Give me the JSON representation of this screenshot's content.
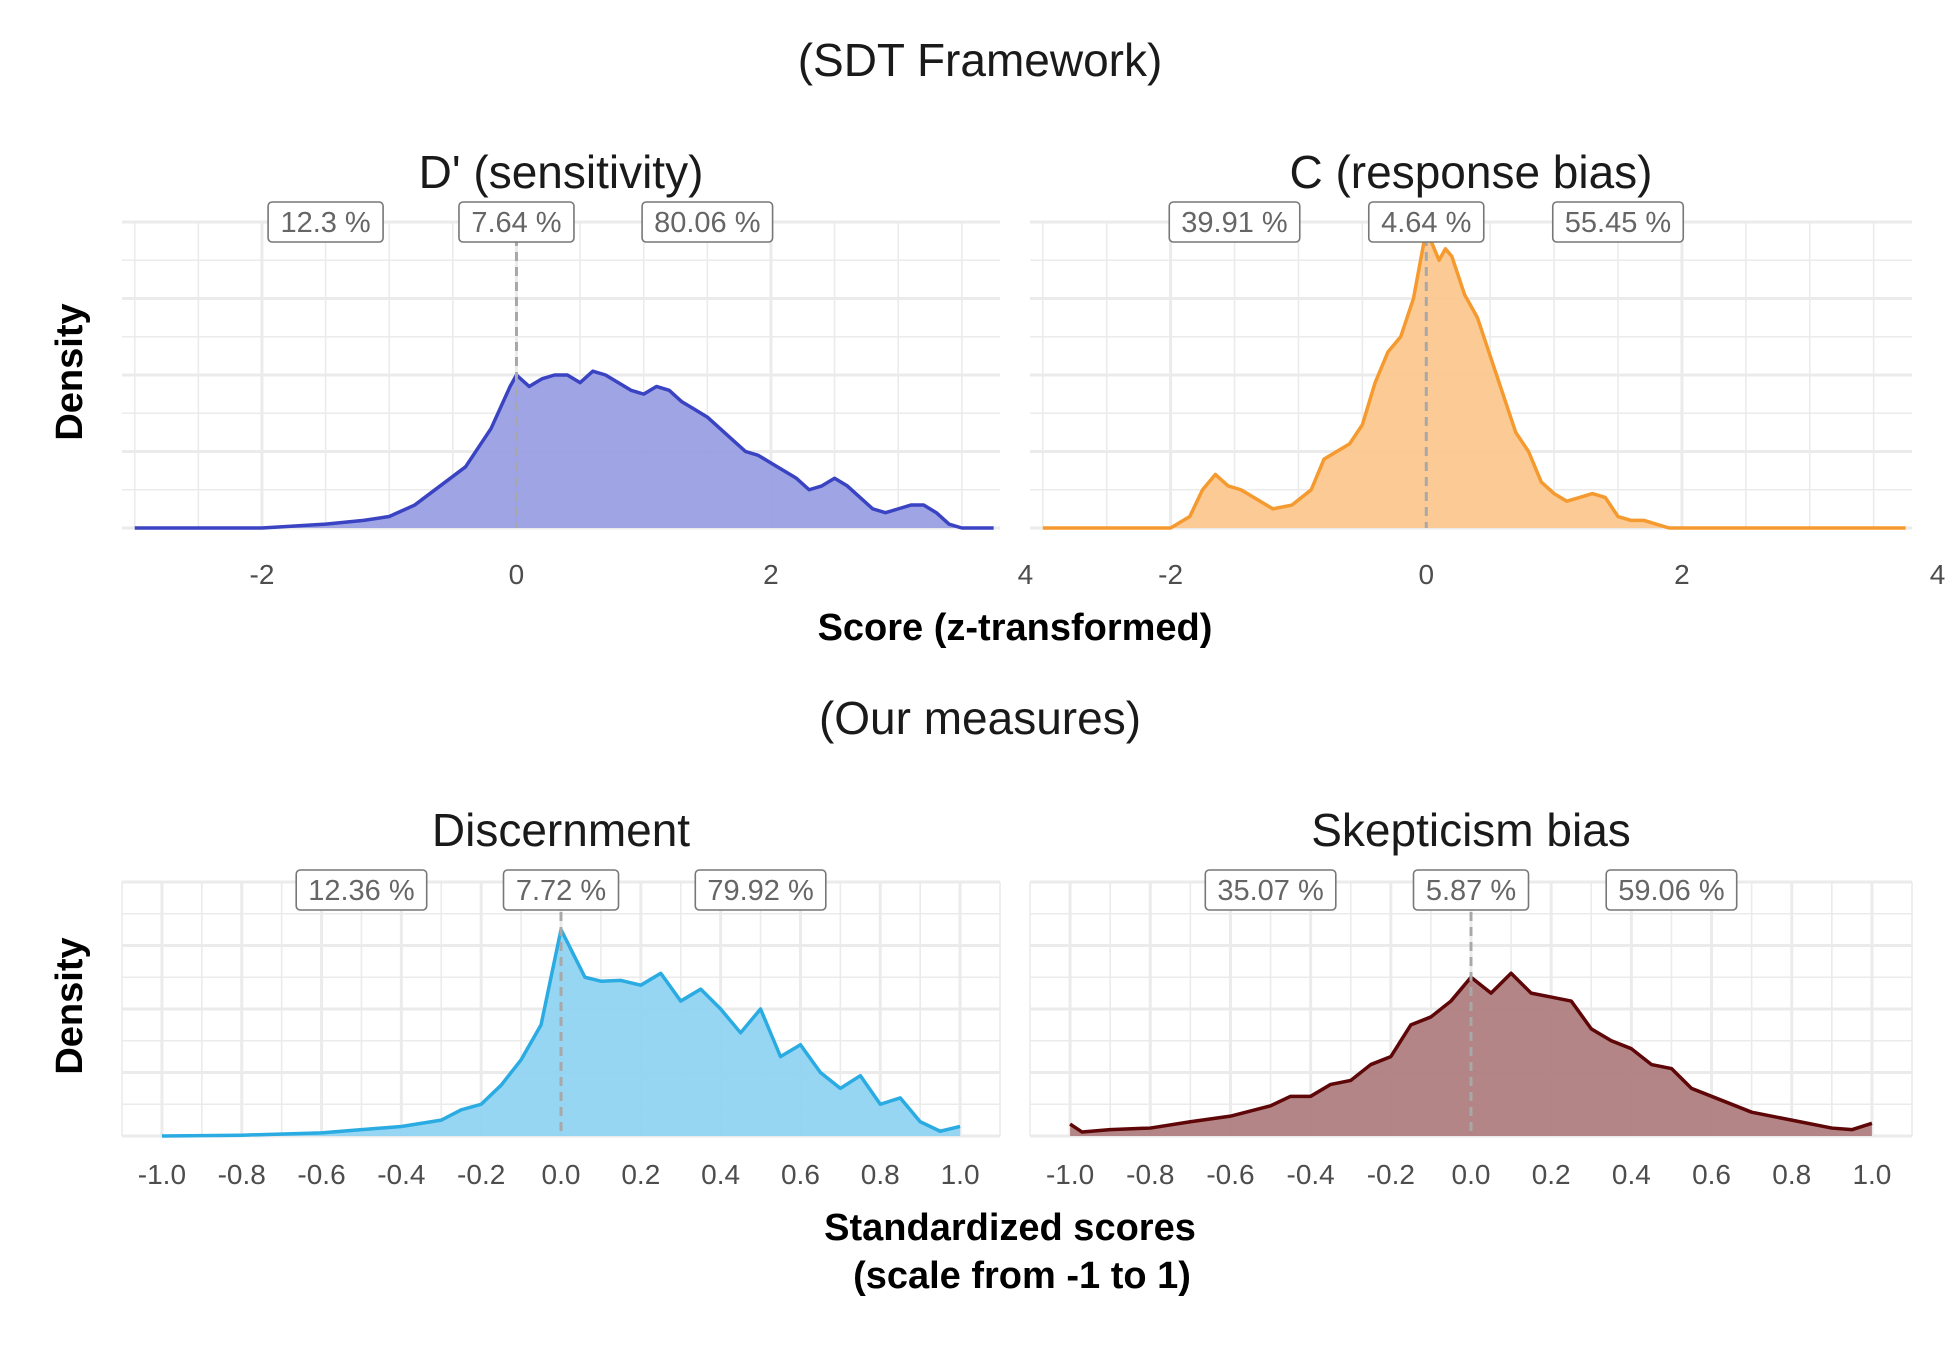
{
  "sections": [
    {
      "title": "(SDT Framework)",
      "x_axis_title": "Score (z-transformed)"
    },
    {
      "title": "(Our measures)",
      "x_axis_title_lines": [
        "Standardized scores",
        "(scale from -1 to 1)"
      ]
    }
  ],
  "y_axis_title": "Density",
  "chart_data": [
    {
      "type": "area",
      "title": "D' (sensitivity)",
      "xlabel": "Score (z-transformed)",
      "ylabel": "Density",
      "xlim": [
        -3.1,
        3.8
      ],
      "xticks": [
        -2,
        0,
        2,
        4
      ],
      "tick_labels": [
        "-2",
        "0",
        "2",
        "4"
      ],
      "ylim": [
        0,
        0.8
      ],
      "grid": true,
      "fill_color": "#9aa0e3",
      "line_color": "#3a43c2",
      "reference_x": 0,
      "region_labels": [
        "12.3 %",
        "7.64 %",
        "80.06 %"
      ],
      "region_label_x": [
        -1.5,
        0,
        1.5
      ],
      "x": [
        -3.0,
        -2.0,
        -1.5,
        -1.2,
        -1.0,
        -0.8,
        -0.6,
        -0.4,
        -0.2,
        -0.05,
        0.0,
        0.1,
        0.2,
        0.3,
        0.4,
        0.5,
        0.6,
        0.7,
        0.8,
        0.9,
        1.0,
        1.1,
        1.2,
        1.3,
        1.4,
        1.5,
        1.6,
        1.7,
        1.8,
        1.9,
        2.0,
        2.1,
        2.2,
        2.3,
        2.4,
        2.5,
        2.6,
        2.7,
        2.8,
        2.9,
        3.0,
        3.1,
        3.2,
        3.3,
        3.4,
        3.5,
        3.75
      ],
      "y": [
        0.0,
        0.0,
        0.01,
        0.02,
        0.03,
        0.06,
        0.11,
        0.16,
        0.26,
        0.37,
        0.4,
        0.37,
        0.39,
        0.4,
        0.4,
        0.38,
        0.41,
        0.4,
        0.38,
        0.36,
        0.35,
        0.37,
        0.36,
        0.33,
        0.31,
        0.29,
        0.26,
        0.23,
        0.2,
        0.19,
        0.17,
        0.15,
        0.13,
        0.1,
        0.11,
        0.13,
        0.11,
        0.08,
        0.05,
        0.04,
        0.05,
        0.06,
        0.06,
        0.04,
        0.01,
        0.0,
        0.0
      ]
    },
    {
      "type": "area",
      "title": "C (response bias)",
      "xlabel": "Score (z-transformed)",
      "ylabel": "Density",
      "xlim": [
        -3.1,
        3.8
      ],
      "xticks": [
        -2,
        0,
        2,
        4
      ],
      "tick_labels": [
        "-2",
        "0",
        "2",
        "4"
      ],
      "ylim": [
        0,
        0.8
      ],
      "grid": true,
      "fill_color": "#fcc78f",
      "line_color": "#f59a2f",
      "reference_x": 0,
      "region_labels": [
        "39.91 %",
        "4.64 %",
        "55.45 %"
      ],
      "region_label_x": [
        -1.5,
        0,
        1.5
      ],
      "x": [
        -3.0,
        -2.0,
        -1.85,
        -1.75,
        -1.65,
        -1.55,
        -1.45,
        -1.35,
        -1.2,
        -1.05,
        -0.9,
        -0.8,
        -0.7,
        -0.6,
        -0.5,
        -0.4,
        -0.3,
        -0.2,
        -0.1,
        0.0,
        0.05,
        0.1,
        0.15,
        0.2,
        0.3,
        0.4,
        0.5,
        0.6,
        0.7,
        0.8,
        0.9,
        1.0,
        1.1,
        1.2,
        1.3,
        1.4,
        1.5,
        1.6,
        1.7,
        1.8,
        1.9,
        2.0,
        3.75
      ],
      "y": [
        0.0,
        0.0,
        0.03,
        0.1,
        0.14,
        0.11,
        0.1,
        0.08,
        0.05,
        0.06,
        0.1,
        0.18,
        0.2,
        0.22,
        0.27,
        0.38,
        0.46,
        0.5,
        0.6,
        0.78,
        0.74,
        0.7,
        0.73,
        0.71,
        0.61,
        0.55,
        0.45,
        0.35,
        0.25,
        0.2,
        0.12,
        0.09,
        0.07,
        0.08,
        0.09,
        0.08,
        0.03,
        0.02,
        0.02,
        0.01,
        0.0,
        0.0,
        0.0
      ]
    },
    {
      "type": "area",
      "title": "Discernment",
      "xlabel": "Standardized scores (scale from -1 to 1)",
      "ylabel": "Density",
      "xlim": [
        -1.1,
        1.1
      ],
      "xticks": [
        -1.0,
        -0.8,
        -0.6,
        -0.4,
        -0.2,
        0.0,
        0.2,
        0.4,
        0.6,
        0.8,
        1.0
      ],
      "tick_labels": [
        "-1.0",
        "-0.8",
        "-0.6",
        "-0.4",
        "-0.2",
        "0.0",
        "0.2",
        "0.4",
        "0.6",
        "0.8",
        "1.0"
      ],
      "ylim": [
        0,
        3.2
      ],
      "grid": true,
      "fill_color": "#91d4f2",
      "line_color": "#2aabe2",
      "reference_x": 0,
      "region_labels": [
        "12.36 %",
        "7.72 %",
        "79.92 %"
      ],
      "region_label_x": [
        -0.5,
        0,
        0.5
      ],
      "x": [
        -1.0,
        -0.8,
        -0.6,
        -0.5,
        -0.4,
        -0.3,
        -0.25,
        -0.2,
        -0.15,
        -0.1,
        -0.05,
        0.0,
        0.03,
        0.06,
        0.1,
        0.15,
        0.2,
        0.25,
        0.3,
        0.35,
        0.4,
        0.45,
        0.5,
        0.55,
        0.6,
        0.65,
        0.7,
        0.75,
        0.8,
        0.85,
        0.9,
        0.95,
        1.0
      ],
      "y": [
        0.0,
        0.01,
        0.04,
        0.08,
        0.12,
        0.2,
        0.33,
        0.4,
        0.64,
        0.96,
        1.4,
        2.6,
        2.3,
        2.0,
        1.95,
        1.96,
        1.9,
        2.05,
        1.7,
        1.85,
        1.6,
        1.3,
        1.6,
        1.0,
        1.15,
        0.8,
        0.6,
        0.76,
        0.4,
        0.48,
        0.18,
        0.06,
        0.12
      ]
    },
    {
      "type": "area",
      "title": "Skepticism bias",
      "xlabel": "Standardized scores (scale from -1 to 1)",
      "ylabel": "Density",
      "xlim": [
        -1.1,
        1.1
      ],
      "xticks": [
        -1.0,
        -0.8,
        -0.6,
        -0.4,
        -0.2,
        0.0,
        0.2,
        0.4,
        0.6,
        0.8,
        1.0
      ],
      "tick_labels": [
        "-1.0",
        "-0.8",
        "-0.6",
        "-0.4",
        "-0.2",
        "0.0",
        "0.2",
        "0.4",
        "0.6",
        "0.8",
        "1.0"
      ],
      "ylim": [
        0,
        3.2
      ],
      "grid": true,
      "fill_color": "#b07e80",
      "line_color": "#5e0608",
      "reference_x": 0,
      "region_labels": [
        "35.07 %",
        "5.87 %",
        "59.06 %"
      ],
      "region_label_x": [
        -0.5,
        0,
        0.5
      ],
      "x": [
        -1.0,
        -0.97,
        -0.9,
        -0.8,
        -0.7,
        -0.6,
        -0.5,
        -0.45,
        -0.4,
        -0.35,
        -0.3,
        -0.25,
        -0.2,
        -0.15,
        -0.1,
        -0.05,
        0.0,
        0.05,
        0.1,
        0.15,
        0.2,
        0.25,
        0.3,
        0.35,
        0.4,
        0.45,
        0.5,
        0.55,
        0.6,
        0.7,
        0.8,
        0.9,
        0.95,
        1.0
      ],
      "y": [
        0.15,
        0.05,
        0.08,
        0.1,
        0.18,
        0.25,
        0.38,
        0.5,
        0.5,
        0.65,
        0.7,
        0.9,
        1.0,
        1.4,
        1.5,
        1.7,
        2.0,
        1.8,
        2.05,
        1.8,
        1.75,
        1.7,
        1.35,
        1.2,
        1.1,
        0.9,
        0.85,
        0.6,
        0.5,
        0.3,
        0.2,
        0.1,
        0.08,
        0.16
      ]
    }
  ]
}
